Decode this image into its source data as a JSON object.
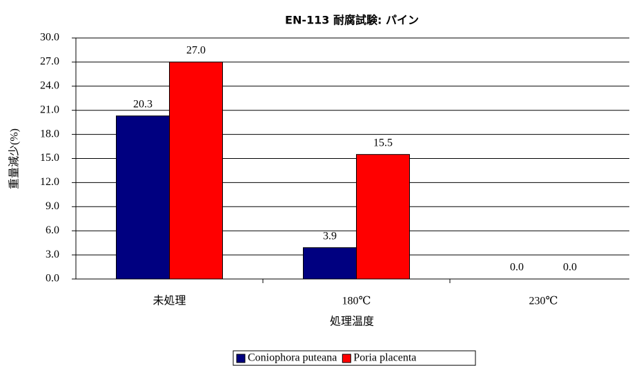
{
  "chart_data": {
    "type": "bar",
    "title": "EN-113 耐腐試験: パイン",
    "y_label": "重量減少(%)",
    "x_label": "処理温度",
    "categories": [
      "未処理",
      "180℃",
      "230℃"
    ],
    "series": [
      {
        "name": "Coniophora puteana",
        "color": "#000080",
        "values": [
          20.3,
          3.9,
          0.0
        ],
        "value_labels": [
          "20.3",
          "3.9",
          "0.0"
        ]
      },
      {
        "name": "Poria placenta",
        "color": "#ff0000",
        "values": [
          27.0,
          15.5,
          0.0
        ],
        "value_labels": [
          "27.0",
          "15.5",
          "0.0"
        ]
      }
    ],
    "ylim": [
      0,
      30
    ],
    "yticks": [
      {
        "value": 0,
        "label": "0.0"
      },
      {
        "value": 3,
        "label": "3.0"
      },
      {
        "value": 6,
        "label": "6.0"
      },
      {
        "value": 9,
        "label": "9.0"
      },
      {
        "value": 12,
        "label": "12.0"
      },
      {
        "value": 15,
        "label": "15.0"
      },
      {
        "value": 18,
        "label": "18.0"
      },
      {
        "value": 21,
        "label": "21.0"
      },
      {
        "value": 24,
        "label": "24.0"
      },
      {
        "value": 27,
        "label": "27.0"
      },
      {
        "value": 30,
        "label": "30.0"
      }
    ],
    "grid": true,
    "legend": "bottom"
  }
}
